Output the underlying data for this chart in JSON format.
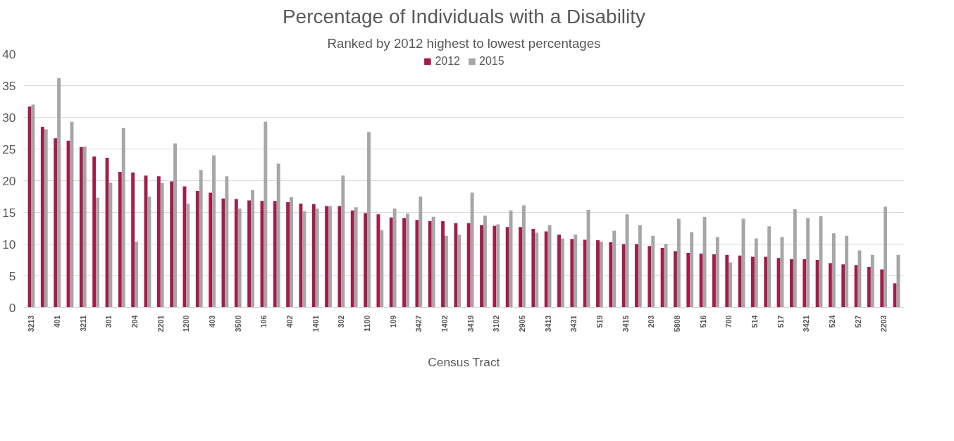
{
  "chart_data": {
    "type": "bar",
    "title": "Percentage of Individuals with a Disability",
    "subtitle": "Ranked by 2012 highest to lowest percentages",
    "xlabel": "Census Tract",
    "categories": [
      "3213",
      null,
      "401",
      null,
      "3211",
      null,
      "301",
      null,
      "204",
      null,
      "2201",
      null,
      "1200",
      null,
      "403",
      null,
      "3500",
      null,
      "106",
      null,
      "402",
      null,
      "1401",
      null,
      "302",
      null,
      "1100",
      null,
      "109",
      null,
      "3427",
      null,
      "1402",
      null,
      "3419",
      null,
      "3102",
      null,
      "2905",
      null,
      "3413",
      null,
      "3431",
      null,
      "519",
      null,
      "3415",
      null,
      "203",
      null,
      "5808",
      null,
      "516",
      null,
      "700",
      null,
      "514",
      null,
      "517",
      null,
      "3421",
      null,
      "524",
      null,
      "527",
      null,
      "2203",
      null
    ],
    "series": [
      {
        "name": "2012",
        "color": "#a51c4a",
        "values": [
          31.7,
          28.5,
          26.7,
          26.3,
          25.3,
          23.8,
          23.6,
          21.4,
          21.3,
          20.8,
          20.7,
          19.9,
          19.1,
          18.4,
          18.1,
          17.2,
          17.1,
          16.9,
          16.8,
          16.8,
          16.6,
          16.4,
          16.3,
          16.0,
          16.0,
          15.3,
          14.9,
          14.7,
          14.2,
          14.1,
          13.8,
          13.6,
          13.6,
          13.3,
          13.3,
          13.0,
          12.9,
          12.7,
          12.7,
          12.4,
          12.0,
          11.5,
          10.8,
          10.7,
          10.6,
          10.3,
          10.0,
          10.0,
          9.7,
          9.4,
          8.9,
          8.6,
          8.5,
          8.4,
          8.3,
          8.2,
          8.0,
          8.0,
          7.8,
          7.6,
          7.6,
          7.5,
          7.0,
          6.8,
          6.7,
          6.4,
          6.0,
          3.8
        ]
      },
      {
        "name": "2015",
        "color": "#a6a6a6",
        "values": [
          32.0,
          28.1,
          36.2,
          29.3,
          25.4,
          17.3,
          19.7,
          28.3,
          10.4,
          17.5,
          19.6,
          25.9,
          16.4,
          21.7,
          24.0,
          20.7,
          15.6,
          18.5,
          29.3,
          22.7,
          17.4,
          15.2,
          15.6,
          16.0,
          20.8,
          15.8,
          27.7,
          12.2,
          15.6,
          14.8,
          17.5,
          14.3,
          11.3,
          11.5,
          18.1,
          14.5,
          13.1,
          15.3,
          16.1,
          11.8,
          13.0,
          10.9,
          11.5,
          15.4,
          10.4,
          12.1,
          14.7,
          13.0,
          11.3,
          10.0,
          14.0,
          11.9,
          14.3,
          11.1,
          7.1,
          14.0,
          10.9,
          12.8,
          11.1,
          15.5,
          14.1,
          14.4,
          11.7,
          11.3,
          9.0,
          8.3,
          15.9,
          8.3
        ]
      }
    ],
    "ylim": [
      0,
      40
    ],
    "yticks": [
      0,
      5,
      10,
      15,
      20,
      25,
      30,
      35,
      40
    ],
    "grid": "y",
    "legend": "top"
  }
}
